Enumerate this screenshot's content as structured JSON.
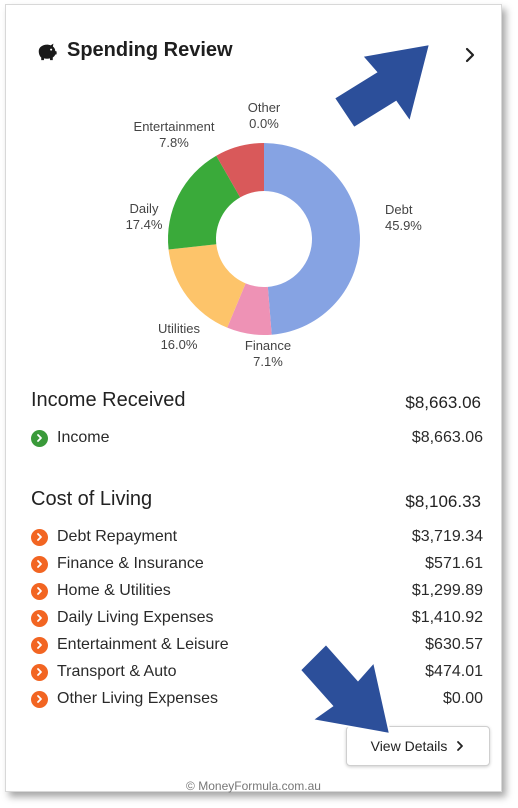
{
  "header": {
    "title": "Spending Review",
    "icon": "piggy-bank-icon"
  },
  "chart_data": {
    "type": "pie",
    "style": "donut",
    "categories": [
      "Debt",
      "Finance",
      "Utilities",
      "Daily",
      "Entertainment",
      "Other"
    ],
    "values": [
      45.9,
      7.1,
      16.0,
      17.4,
      7.8,
      0.0
    ],
    "percent_labels": [
      "45.9%",
      "7.1%",
      "16.0%",
      "17.4%",
      "7.8%",
      "0.0%"
    ],
    "colors": [
      "#86a3e3",
      "#ee92b5",
      "#fdc46a",
      "#3aaa3a",
      "#d9595a",
      "#cbcbcb"
    ]
  },
  "income": {
    "title": "Income Received",
    "total": "$8,663.06",
    "items": [
      {
        "label": "Income",
        "value": "$8,663.06",
        "color": "#3a9a3a",
        "icon": "chevron-right-icon"
      }
    ]
  },
  "cost": {
    "title": "Cost of Living",
    "total": "$8,106.33",
    "items": [
      {
        "label": "Debt Repayment",
        "value": "$3,719.34",
        "color": "#f26522",
        "icon": "chevron-right-icon"
      },
      {
        "label": "Finance & Insurance",
        "value": "$571.61",
        "color": "#f26522",
        "icon": "chevron-right-icon"
      },
      {
        "label": "Home & Utilities",
        "value": "$1,299.89",
        "color": "#f26522",
        "icon": "chevron-right-icon"
      },
      {
        "label": "Daily Living Expenses",
        "value": "$1,410.92",
        "color": "#f26522",
        "icon": "chevron-right-icon"
      },
      {
        "label": "Entertainment & Leisure",
        "value": "$630.57",
        "color": "#f26522",
        "icon": "chevron-right-icon"
      },
      {
        "label": "Transport & Auto",
        "value": "$474.01",
        "color": "#f26522",
        "icon": "chevron-right-icon"
      },
      {
        "label": "Other Living Expenses",
        "value": "$0.00",
        "color": "#f26522",
        "icon": "chevron-right-icon"
      }
    ]
  },
  "view_details_label": "View Details",
  "footer": "© MoneyFormula.com.au",
  "annotation_arrow_color": "#2c4f9a"
}
